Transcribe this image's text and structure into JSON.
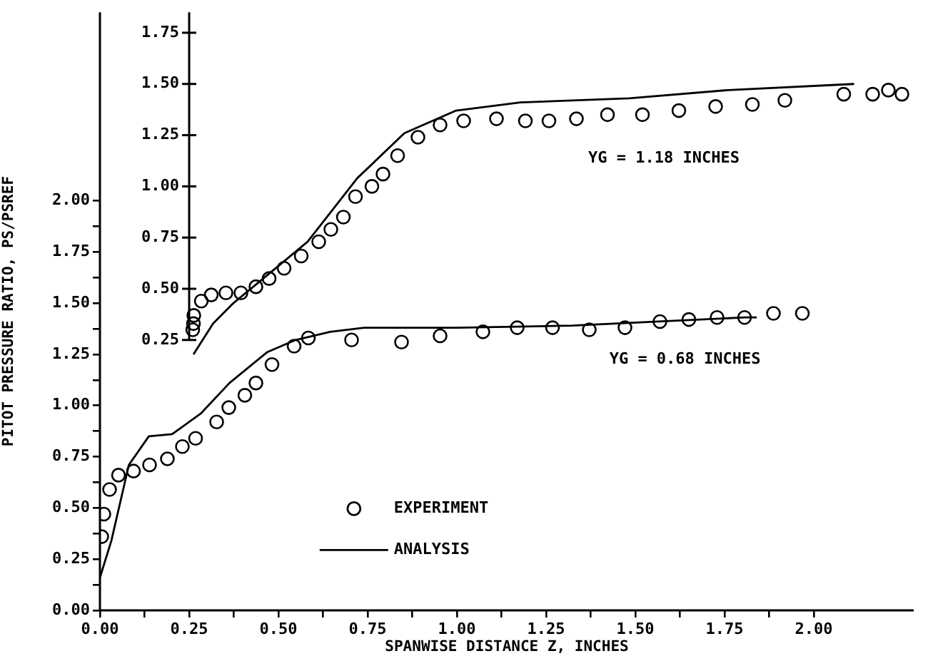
{
  "chart_data": {
    "type": "scatter",
    "xlabel": "SPANWISE DISTANCE Z, INCHES",
    "ylabel": "PITOT PRESSURE RATIO, PS/PSREF",
    "legend": "bottom",
    "xlim": [
      0,
      2.28
    ],
    "ylim": [
      0,
      2.92
    ],
    "y2lim": [
      -1.07,
      1.85
    ],
    "xticks": [
      {
        "value": 0,
        "label": "0.00"
      },
      {
        "value": 0.125,
        "label": null
      },
      {
        "value": 0.25,
        "label": "0.25"
      },
      {
        "value": 0.375,
        "label": null
      },
      {
        "value": 0.5,
        "label": "0.50"
      },
      {
        "value": 0.625,
        "label": null
      },
      {
        "value": 0.75,
        "label": "0.75"
      },
      {
        "value": 0.875,
        "label": null
      },
      {
        "value": 1.0,
        "label": "1.00"
      },
      {
        "value": 1.125,
        "label": null
      },
      {
        "value": 1.25,
        "label": "1.25"
      },
      {
        "value": 1.375,
        "label": null
      },
      {
        "value": 1.5,
        "label": "1.50"
      },
      {
        "value": 1.625,
        "label": null
      },
      {
        "value": 1.75,
        "label": "1.75"
      },
      {
        "value": 1.875,
        "label": null
      },
      {
        "value": 2.0,
        "label": "2.00"
      }
    ],
    "yticks": [
      {
        "value": 0,
        "label": "0.00"
      },
      {
        "value": 0.125,
        "label": null
      },
      {
        "value": 0.25,
        "label": "0.25"
      },
      {
        "value": 0.375,
        "label": null
      },
      {
        "value": 0.5,
        "label": "0.50"
      },
      {
        "value": 0.625,
        "label": null
      },
      {
        "value": 0.75,
        "label": "0.75"
      },
      {
        "value": 0.875,
        "label": null
      },
      {
        "value": 1.0,
        "label": "1.00"
      },
      {
        "value": 1.125,
        "label": null
      },
      {
        "value": 1.25,
        "label": "1.25"
      },
      {
        "value": 1.375,
        "label": null
      },
      {
        "value": 1.5,
        "label": "1.50"
      },
      {
        "value": 1.625,
        "label": null
      },
      {
        "value": 1.75,
        "label": "1.75"
      },
      {
        "value": 1.875,
        "label": null
      },
      {
        "value": 2.0,
        "label": "2.00"
      }
    ],
    "y2ticks": [
      {
        "value": 0.25,
        "label": "0.25"
      },
      {
        "value": 0.5,
        "label": "0.50"
      },
      {
        "value": 0.75,
        "label": "0.75"
      },
      {
        "value": 1.0,
        "label": "1.00"
      },
      {
        "value": 1.25,
        "label": "1.25"
      },
      {
        "value": 1.5,
        "label": "1.50"
      },
      {
        "value": 1.75,
        "label": "1.75"
      }
    ],
    "annotations": [
      "YG = 1.18 INCHES",
      "YG = 0.68 INCHES"
    ],
    "series": [
      {
        "axis": "y2",
        "marker": "circle",
        "color": "#000000",
        "x": [
          0.26,
          0.262,
          0.263,
          0.284,
          0.312,
          0.353,
          0.395,
          0.437,
          0.474,
          0.516,
          0.564,
          0.613,
          0.647,
          0.682,
          0.716,
          0.762,
          0.793,
          0.834,
          0.891,
          0.953,
          1.019,
          1.111,
          1.192,
          1.258,
          1.335,
          1.422,
          1.52,
          1.622,
          1.725,
          1.828,
          1.919,
          2.084,
          2.165,
          2.209,
          2.247
        ],
        "values": [
          0.3,
          0.33,
          0.37,
          0.44,
          0.47,
          0.48,
          0.48,
          0.51,
          0.55,
          0.6,
          0.66,
          0.73,
          0.79,
          0.85,
          0.95,
          1.0,
          1.06,
          1.15,
          1.24,
          1.3,
          1.32,
          1.33,
          1.32,
          1.32,
          1.33,
          1.35,
          1.35,
          1.37,
          1.39,
          1.4,
          1.42,
          1.45,
          1.45,
          1.47,
          1.45
        ]
      },
      {
        "type": "line",
        "axis": "y2",
        "marker": "none",
        "color": "#000000",
        "x": [
          0.262,
          0.317,
          0.374,
          0.513,
          0.582,
          0.721,
          0.853,
          0.998,
          1.178,
          1.483,
          1.76,
          2.113
        ],
        "values": [
          0.18,
          0.33,
          0.43,
          0.63,
          0.73,
          1.04,
          1.26,
          1.37,
          1.41,
          1.43,
          1.47,
          1.5
        ]
      },
      {
        "name": "EXPERIMENT",
        "marker": "circle",
        "color": "#000000",
        "x": [
          0.005,
          0.011,
          0.027,
          0.052,
          0.094,
          0.139,
          0.189,
          0.231,
          0.268,
          0.327,
          0.361,
          0.406,
          0.437,
          0.482,
          0.544,
          0.584,
          0.705,
          0.845,
          0.953,
          1.073,
          1.169,
          1.268,
          1.371,
          1.471,
          1.569,
          1.65,
          1.729,
          1.806,
          1.887,
          1.968
        ],
        "values": [
          0.36,
          0.47,
          0.59,
          0.66,
          0.68,
          0.71,
          0.74,
          0.8,
          0.84,
          0.92,
          0.99,
          1.05,
          1.11,
          1.2,
          1.29,
          1.33,
          1.32,
          1.31,
          1.34,
          1.36,
          1.38,
          1.38,
          1.37,
          1.38,
          1.41,
          1.42,
          1.43,
          1.43,
          1.45,
          1.45
        ]
      },
      {
        "type": "line",
        "name": "ANALYSIS",
        "marker": "none",
        "color": "#000000",
        "x": [
          0,
          0.032,
          0.081,
          0.137,
          0.202,
          0.282,
          0.363,
          0.468,
          0.548,
          0.645,
          0.742,
          1.0,
          1.323,
          1.565,
          1.806,
          1.84
        ],
        "values": [
          0.16,
          0.34,
          0.71,
          0.85,
          0.86,
          0.96,
          1.11,
          1.26,
          1.32,
          1.36,
          1.38,
          1.38,
          1.39,
          1.41,
          1.43,
          1.43
        ]
      }
    ]
  }
}
